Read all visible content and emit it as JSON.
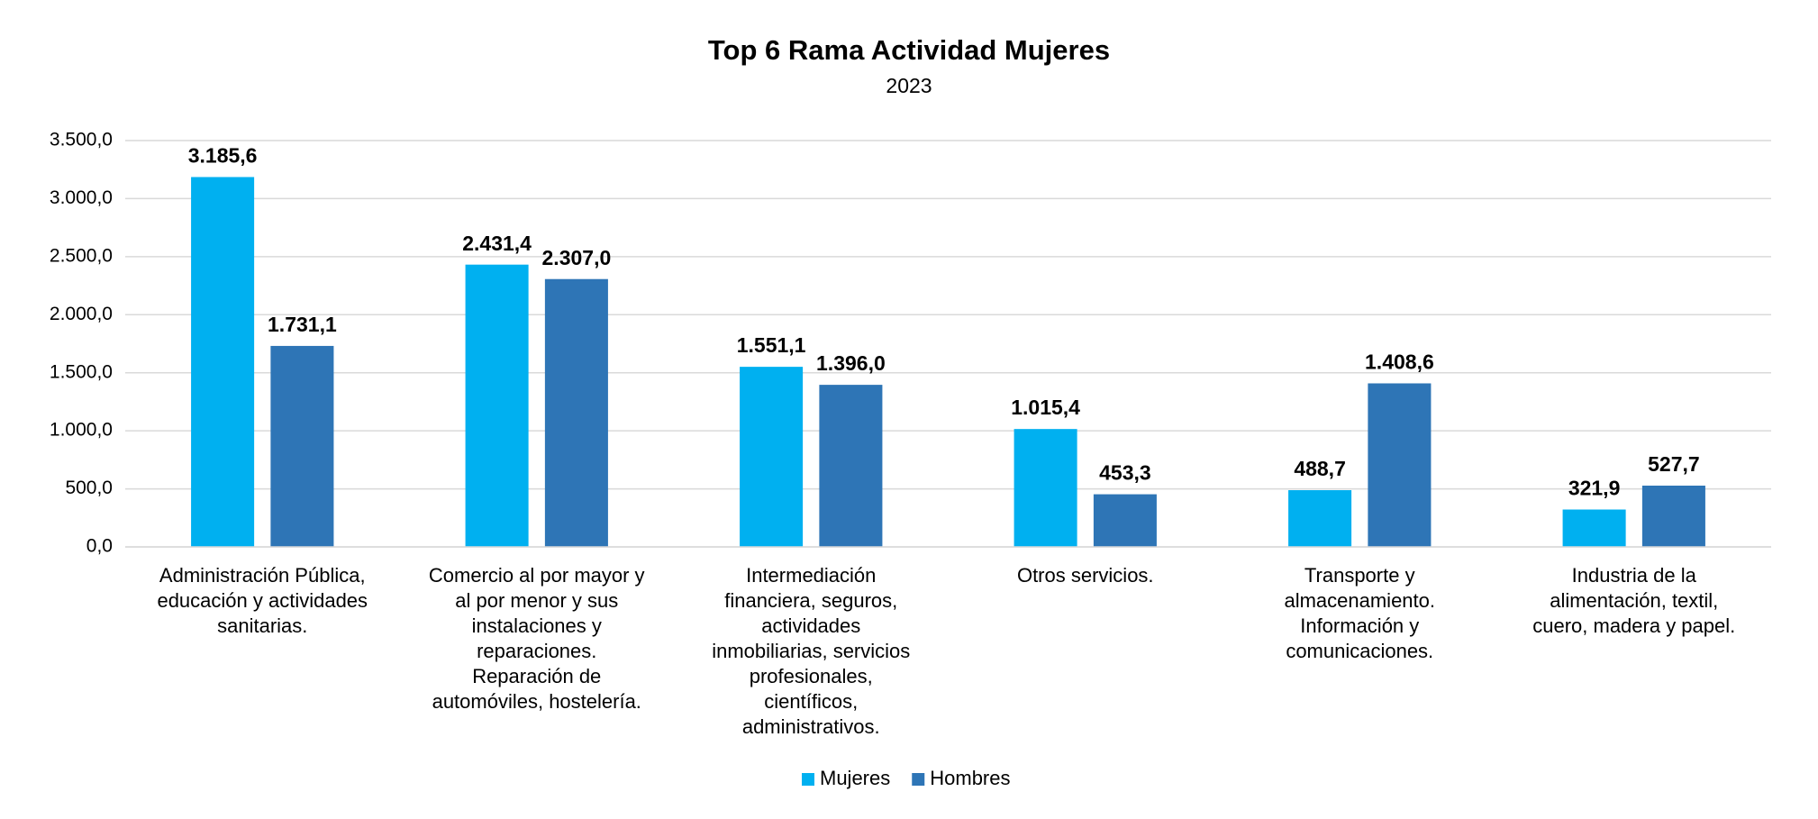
{
  "chart_data": {
    "type": "bar",
    "title": "Top 6 Rama Actividad Mujeres",
    "subtitle": "2023",
    "categories": [
      "Administración Pública, educación y actividades sanitarias.",
      "Comercio al por mayor y al por menor y sus instalaciones y reparaciones. Reparación de automóviles, hostelería.",
      "Intermediación financiera, seguros, actividades inmobiliarias, servicios profesionales, científicos, administrativos.",
      "Otros servicios.",
      "Transporte y almacenamiento. Información y comunicaciones.",
      "Industria de la alimentación, textil, cuero, madera y papel."
    ],
    "series": [
      {
        "name": "Mujeres",
        "color": "#00b0f0",
        "values": [
          3185.6,
          2431.4,
          1551.1,
          1015.4,
          488.7,
          321.9
        ],
        "value_labels": [
          "3.185,6",
          "2.431,4",
          "1.551,1",
          "1.015,4",
          "488,7",
          "321,9"
        ]
      },
      {
        "name": "Hombres",
        "color": "#2e75b6",
        "values": [
          1731.1,
          2307.0,
          1396.0,
          453.3,
          1408.6,
          527.7
        ],
        "value_labels": [
          "1.731,1",
          "2.307,0",
          "1.396,0",
          "453,3",
          "1.408,6",
          "527,7"
        ]
      }
    ],
    "ylim": [
      0,
      3500
    ],
    "yticks": [
      {
        "value": 0,
        "label": "0,0"
      },
      {
        "value": 500,
        "label": "500,0"
      },
      {
        "value": 1000,
        "label": "1.000,0"
      },
      {
        "value": 1500,
        "label": "1.500,0"
      },
      {
        "value": 2000,
        "label": "2.000,0"
      },
      {
        "value": 2500,
        "label": "2.500,0"
      },
      {
        "value": 3000,
        "label": "3.000,0"
      },
      {
        "value": 3500,
        "label": "3.500,0"
      }
    ],
    "grid": true,
    "legend": "bottom"
  }
}
